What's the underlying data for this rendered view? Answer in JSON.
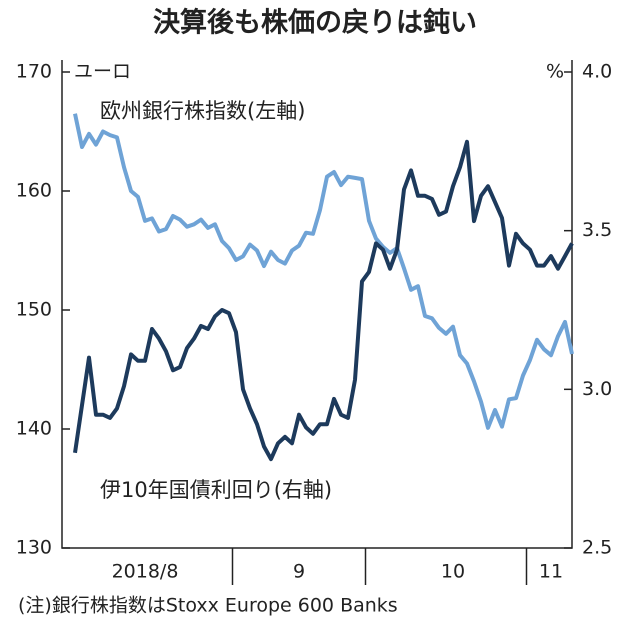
{
  "chart_data": {
    "type": "line",
    "title": "決算後も株価の戻りは鈍い",
    "y_unit": "ユーロ",
    "y2_unit": "%",
    "note": "(注)銀行株指数はStoxx Europe 600 Banks",
    "categories": [
      null,
      null,
      null,
      null,
      null,
      null,
      null,
      null,
      null,
      null,
      "2018/8",
      null,
      null,
      null,
      null,
      null,
      null,
      null,
      null,
      null,
      null,
      null,
      null,
      null,
      null,
      null,
      null,
      null,
      null,
      null,
      null,
      null,
      "9",
      null,
      null,
      null,
      null,
      null,
      null,
      null,
      null,
      null,
      null,
      null,
      null,
      null,
      null,
      null,
      null,
      null,
      null,
      null,
      null,
      null,
      "10",
      null,
      null,
      null,
      null,
      null,
      null,
      null,
      null,
      null,
      null,
      null,
      null,
      null,
      "11",
      null,
      null,
      null
    ],
    "series": [
      {
        "name": "欧州銀行株指数(左軸)",
        "color": "#6fa3d6",
        "axis": "y",
        "values": [
          166.5,
          163.7,
          164.8,
          163.9,
          165,
          164.7,
          164.5,
          162,
          160,
          159.5,
          157.5,
          157.7,
          156.6,
          156.8,
          157.9,
          157.6,
          157,
          157.2,
          157.6,
          156.9,
          157.2,
          155.8,
          155.2,
          154.2,
          154.5,
          155.5,
          155,
          153.7,
          154.9,
          154.2,
          153.9,
          155,
          155.4,
          156.5,
          156.4,
          158.4,
          161.2,
          161.6,
          160.5,
          161.2,
          161.1,
          161,
          157.5,
          156,
          155.3,
          154.8,
          155.2,
          153.5,
          151.7,
          152,
          149.5,
          149.3,
          148.5,
          148,
          148.6,
          146.2,
          145.5,
          144,
          142.3,
          140.1,
          141.6,
          140.2,
          142.5,
          142.6,
          144.5,
          145.8,
          147.5,
          146.7,
          146.2,
          147.8,
          149,
          146.3
        ]
      },
      {
        "name": "伊10年国債利回り(右軸)",
        "color": "#1d3a5c",
        "axis": "y2",
        "values": [
          2.8,
          2.95,
          3.1,
          2.92,
          2.92,
          2.91,
          2.94,
          3.01,
          3.11,
          3.09,
          3.09,
          3.19,
          3.16,
          3.12,
          3.06,
          3.07,
          3.13,
          3.16,
          3.2,
          3.19,
          3.23,
          3.25,
          3.24,
          3.18,
          3.0,
          2.94,
          2.89,
          2.82,
          2.78,
          2.83,
          2.85,
          2.83,
          2.92,
          2.88,
          2.86,
          2.89,
          2.89,
          2.97,
          2.92,
          2.91,
          3.03,
          3.34,
          3.37,
          3.46,
          3.44,
          3.38,
          3.44,
          3.63,
          3.69,
          3.61,
          3.61,
          3.6,
          3.55,
          3.56,
          3.64,
          3.7,
          3.78,
          3.53,
          3.61,
          3.64,
          3.59,
          3.54,
          3.39,
          3.49,
          3.46,
          3.44,
          3.39,
          3.39,
          3.42,
          3.38,
          3.42,
          3.46
        ]
      }
    ],
    "ylim": [
      130,
      170
    ],
    "yticks": [
      130,
      140,
      150,
      160,
      170
    ],
    "y2lim": [
      2.5,
      4.0
    ],
    "y2ticks": [
      2.5,
      {
        "value": 3,
        "label": "3.0"
      },
      3.5,
      {
        "value": 4,
        "label": "4.0"
      }
    ]
  }
}
